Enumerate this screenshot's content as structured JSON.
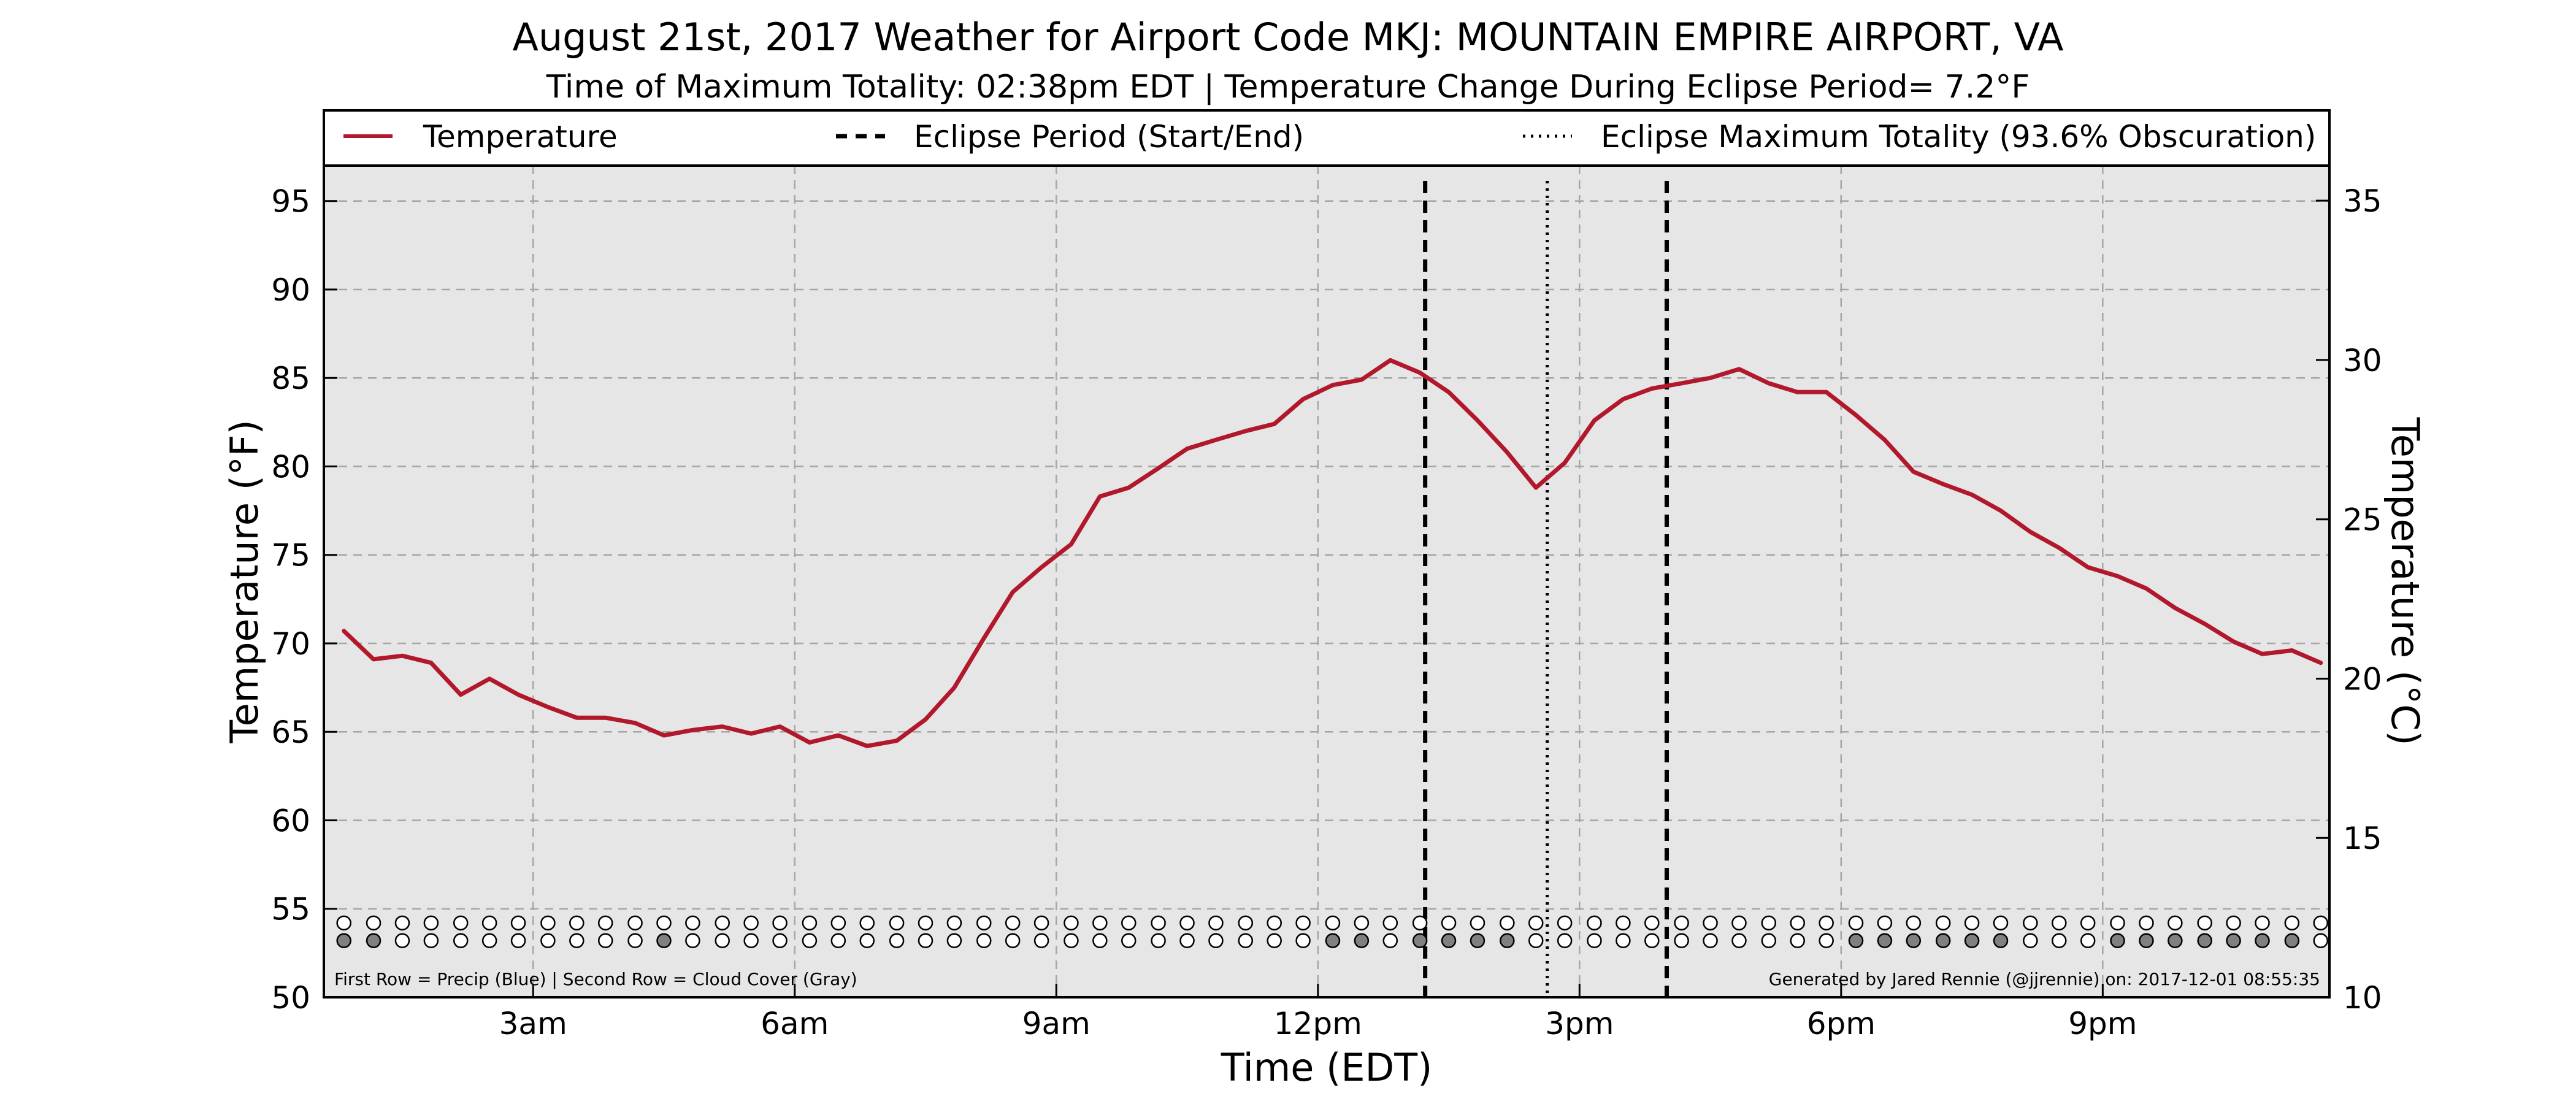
{
  "title": "August 21st, 2017 Weather for Airport Code MKJ: MOUNTAIN EMPIRE AIRPORT, VA",
  "subtitle": "Time of Maximum Totality: 02:38pm EDT | Temperature Change During Eclipse Period= 7.2°F",
  "legend": {
    "temperature": "Temperature",
    "eclipse_period": "Eclipse Period (Start/End)",
    "eclipse_max": "Eclipse Maximum Totality (93.6% Obscuration)"
  },
  "footer": {
    "left_note": "First Row = Precip (Blue) | Second Row = Cloud Cover (Gray)",
    "right_note": "Generated by Jared Rennie (@jjrennie) on: 2017-12-01 08:55:35"
  },
  "colors": {
    "line": "#b2182b",
    "plot_bg": "#e6e6e6",
    "grid": "#a6a6a6",
    "cloud_fill": "#808080",
    "marker_empty": "#ffffff"
  },
  "chart_data": {
    "type": "line",
    "xlabel": "Time (EDT)",
    "ylabel_left": "Temperature (°F)",
    "ylabel_right": "Temperature (°C)",
    "xlim_hours": [
      0.6,
      23.6
    ],
    "ylim_f": [
      50,
      97
    ],
    "ylim_c": [
      10,
      36.1
    ],
    "x_ticks": [
      {
        "hour": 3,
        "label": "3am"
      },
      {
        "hour": 6,
        "label": "6am"
      },
      {
        "hour": 9,
        "label": "9am"
      },
      {
        "hour": 12,
        "label": "12pm"
      },
      {
        "hour": 15,
        "label": "3pm"
      },
      {
        "hour": 18,
        "label": "6pm"
      },
      {
        "hour": 21,
        "label": "9pm"
      }
    ],
    "y_ticks_f": [
      50,
      55,
      60,
      65,
      70,
      75,
      80,
      85,
      90,
      95
    ],
    "y_ticks_c": [
      10,
      15,
      20,
      25,
      30,
      35
    ],
    "grid": true,
    "legend_position": "top",
    "eclipse_start": "1:14pm",
    "eclipse_max": "2:38pm",
    "eclipse_end": "4:00pm",
    "eclipse_start_hour": 13.23,
    "eclipse_max_hour": 14.63,
    "eclipse_end_hour": 16.0,
    "series": [
      {
        "name": "Temperature",
        "x_hours": [
          0.83,
          1.17,
          1.5,
          1.83,
          2.17,
          2.5,
          2.83,
          3.17,
          3.5,
          3.83,
          4.17,
          4.5,
          4.83,
          5.17,
          5.5,
          5.83,
          6.17,
          6.5,
          6.83,
          7.17,
          7.5,
          7.83,
          8.17,
          8.5,
          8.83,
          9.17,
          9.5,
          9.83,
          10.17,
          10.5,
          10.83,
          11.17,
          11.5,
          11.83,
          12.17,
          12.5,
          12.83,
          13.17,
          13.5,
          13.83,
          14.17,
          14.5,
          14.83,
          15.17,
          15.5,
          15.83,
          16.17,
          16.5,
          16.83,
          17.17,
          17.5,
          17.83,
          18.17,
          18.5,
          18.83,
          19.17,
          19.5,
          19.83,
          20.17,
          20.5,
          20.83,
          21.17,
          21.5,
          21.83,
          22.17,
          22.5,
          22.83,
          23.17,
          23.5
        ],
        "values_f": [
          70.7,
          69.1,
          69.3,
          68.9,
          67.1,
          68.0,
          67.1,
          66.4,
          65.8,
          65.8,
          65.5,
          64.8,
          65.1,
          65.3,
          64.9,
          65.3,
          64.4,
          64.8,
          64.2,
          64.5,
          65.7,
          67.5,
          70.3,
          72.9,
          74.3,
          75.6,
          78.3,
          78.8,
          79.9,
          81.0,
          81.5,
          82.0,
          82.4,
          83.8,
          84.6,
          84.9,
          86.0,
          85.3,
          84.2,
          82.6,
          80.8,
          78.8,
          80.2,
          82.6,
          83.8,
          84.4,
          84.7,
          85.0,
          85.5,
          84.7,
          84.2,
          84.2,
          82.9,
          81.5,
          79.7,
          79.0,
          78.4,
          77.5,
          76.3,
          75.4,
          74.3,
          73.8,
          73.1,
          72.0,
          71.1,
          70.1,
          69.4,
          69.6,
          68.9
        ]
      }
    ],
    "precip_row": [
      0,
      0,
      0,
      0,
      0,
      0,
      0,
      0,
      0,
      0,
      0,
      0,
      0,
      0,
      0,
      0,
      0,
      0,
      0,
      0,
      0,
      0,
      0,
      0,
      0,
      0,
      0,
      0,
      0,
      0,
      0,
      0,
      0,
      0,
      0,
      0,
      0,
      0,
      0,
      0,
      0,
      0,
      0,
      0,
      0,
      0,
      0,
      0,
      0,
      0,
      0,
      0,
      0,
      0,
      0,
      0,
      0,
      0,
      0,
      0,
      0,
      0,
      0,
      0,
      0,
      0,
      0,
      0,
      0
    ],
    "cloud_row": [
      1,
      1,
      0,
      0,
      0,
      0,
      0,
      0,
      0,
      0,
      0,
      1,
      0,
      0,
      0,
      0,
      0,
      0,
      0,
      0,
      0,
      0,
      0,
      0,
      0,
      0,
      0,
      0,
      0,
      0,
      0,
      0,
      0,
      0,
      1,
      1,
      0,
      1,
      1,
      1,
      1,
      0,
      0,
      0,
      0,
      0,
      0,
      0,
      0,
      0,
      0,
      0,
      1,
      1,
      1,
      1,
      1,
      1,
      0,
      0,
      0,
      1,
      1,
      1,
      1,
      1,
      1,
      1,
      0
    ]
  }
}
